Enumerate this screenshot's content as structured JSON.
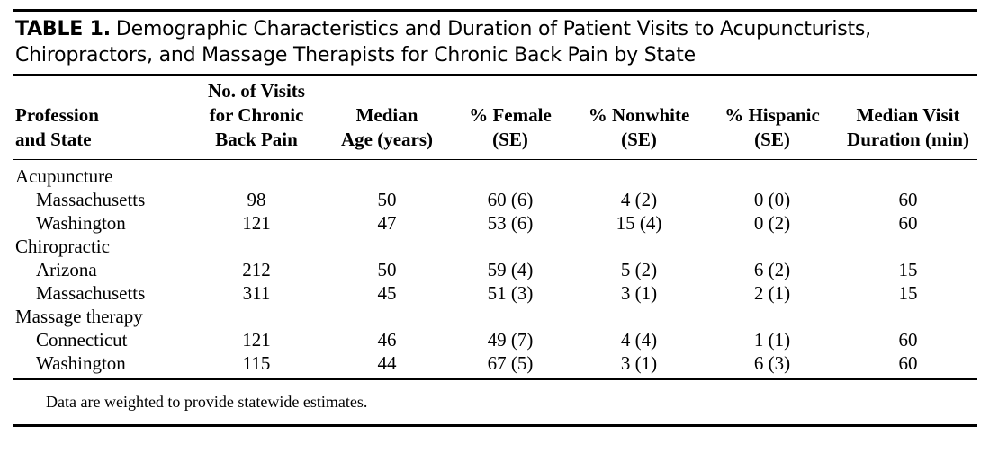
{
  "table": {
    "label": "TABLE 1.",
    "title": "Demographic Characteristics and Duration of Patient Visits to Acupuncturists, Chiropractors, and Massage Therapists for Chronic Back Pain by State",
    "headers": [
      [
        "Profession",
        "and State"
      ],
      [
        "No. of Visits",
        "for Chronic",
        "Back Pain"
      ],
      [
        "Median",
        "Age (years)"
      ],
      [
        "% Female",
        "(SE)"
      ],
      [
        "% Nonwhite",
        "(SE)"
      ],
      [
        "% Hispanic",
        "(SE)"
      ],
      [
        "Median Visit",
        "Duration (min)"
      ]
    ],
    "groups": [
      {
        "name": "Acupuncture",
        "rows": [
          {
            "state": "Massachusetts",
            "visits": "98",
            "age": "50",
            "female": "60 (6)",
            "nonwhite": "4 (2)",
            "hispanic": "0 (0)",
            "duration": "60"
          },
          {
            "state": "Washington",
            "visits": "121",
            "age": "47",
            "female": "53 (6)",
            "nonwhite": "15 (4)",
            "hispanic": "0 (2)",
            "duration": "60"
          }
        ]
      },
      {
        "name": "Chiropractic",
        "rows": [
          {
            "state": "Arizona",
            "visits": "212",
            "age": "50",
            "female": "59 (4)",
            "nonwhite": "5 (2)",
            "hispanic": "6 (2)",
            "duration": "15"
          },
          {
            "state": "Massachusetts",
            "visits": "311",
            "age": "45",
            "female": "51 (3)",
            "nonwhite": "3 (1)",
            "hispanic": "2 (1)",
            "duration": "15"
          }
        ]
      },
      {
        "name": "Massage therapy",
        "rows": [
          {
            "state": "Connecticut",
            "visits": "121",
            "age": "46",
            "female": "49 (7)",
            "nonwhite": "4 (4)",
            "hispanic": "1 (1)",
            "duration": "60"
          },
          {
            "state": "Washington",
            "visits": "115",
            "age": "44",
            "female": "67 (5)",
            "nonwhite": "3 (1)",
            "hispanic": "6 (3)",
            "duration": "60"
          }
        ]
      }
    ],
    "footnote": "Data are weighted to provide statewide estimates."
  }
}
